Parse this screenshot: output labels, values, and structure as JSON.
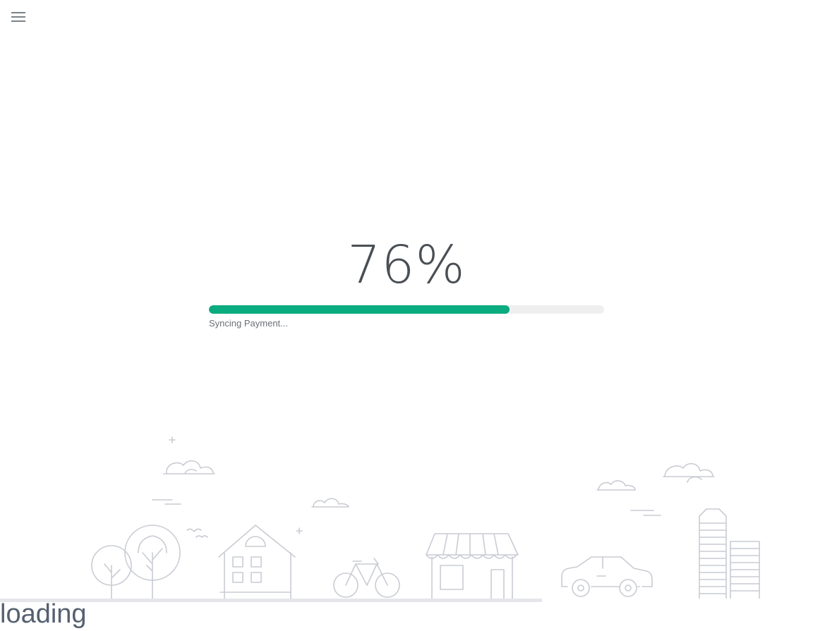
{
  "menu": {
    "icon": "hamburger-menu-icon"
  },
  "progress": {
    "percent_label": "76%",
    "value_percent": 76,
    "status": "Syncing Payment...",
    "fill_color": "#0aab7f",
    "track_color": "#efefef"
  },
  "footer": {
    "loading_label": "loading",
    "bar_value_percent": 66.7
  },
  "colors": {
    "illustration_stroke": "#c9ccd3",
    "text": "#4a4f55"
  }
}
